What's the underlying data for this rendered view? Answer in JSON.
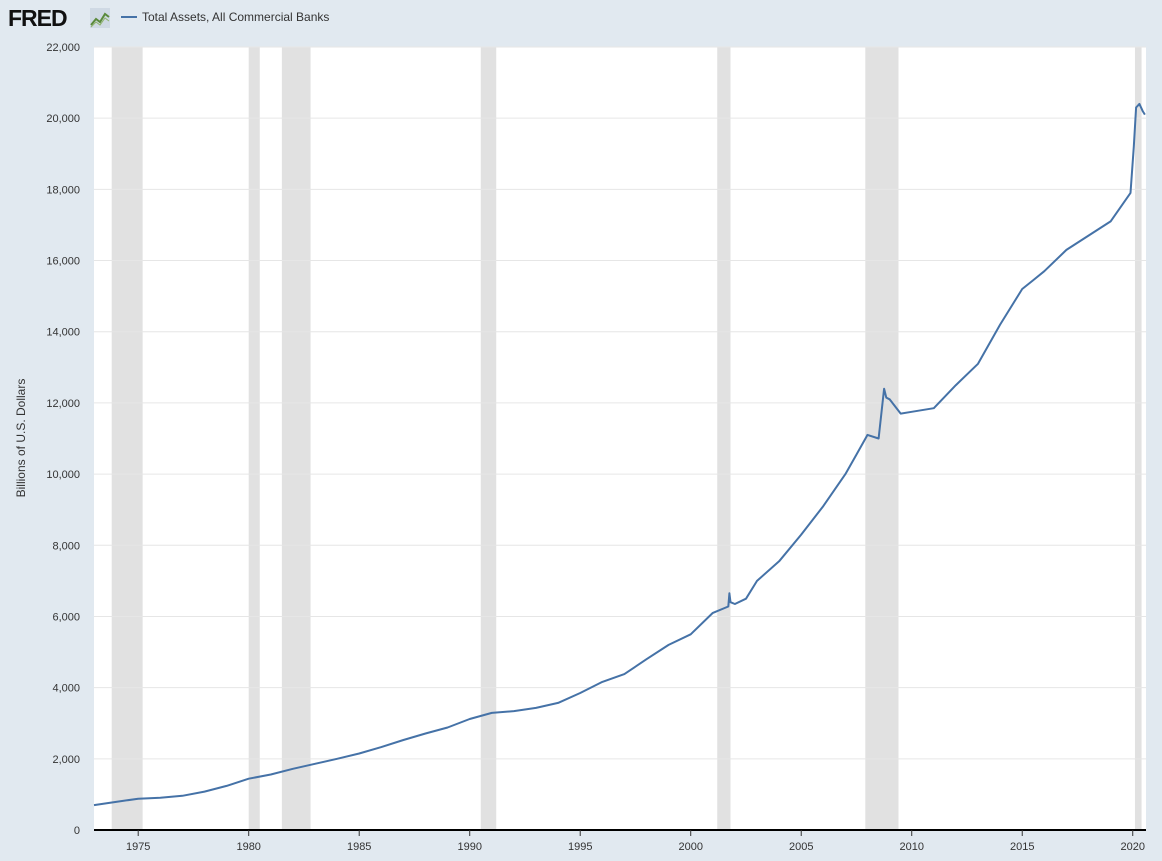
{
  "header": {
    "logo_text": "FRED",
    "logo_icon": "fred-chart-icon"
  },
  "chart_data": {
    "type": "line",
    "title": "",
    "xlabel": "",
    "ylabel": "Billions of U.S. Dollars",
    "xlim": [
      1973.0,
      2020.6
    ],
    "ylim": [
      0,
      22000
    ],
    "grid": true,
    "legend_position": "top-left",
    "colors": {
      "line": "#4572a7",
      "recession": "#e1e1e1",
      "background": "#e1e9f0",
      "plot": "#ffffff"
    },
    "y_ticks": [
      {
        "value": 0,
        "label": "0"
      },
      {
        "value": 2000,
        "label": "2,000"
      },
      {
        "value": 4000,
        "label": "4,000"
      },
      {
        "value": 6000,
        "label": "6,000"
      },
      {
        "value": 8000,
        "label": "8,000"
      },
      {
        "value": 10000,
        "label": "10,000"
      },
      {
        "value": 12000,
        "label": "12,000"
      },
      {
        "value": 14000,
        "label": "14,000"
      },
      {
        "value": 16000,
        "label": "16,000"
      },
      {
        "value": 18000,
        "label": "18,000"
      },
      {
        "value": 20000,
        "label": "20,000"
      },
      {
        "value": 22000,
        "label": "22,000"
      }
    ],
    "x_ticks": [
      {
        "value": 1975,
        "label": "1975"
      },
      {
        "value": 1980,
        "label": "1980"
      },
      {
        "value": 1985,
        "label": "1985"
      },
      {
        "value": 1990,
        "label": "1990"
      },
      {
        "value": 1995,
        "label": "1995"
      },
      {
        "value": 2000,
        "label": "2000"
      },
      {
        "value": 2005,
        "label": "2005"
      },
      {
        "value": 2010,
        "label": "2010"
      },
      {
        "value": 2015,
        "label": "2015"
      },
      {
        "value": 2020,
        "label": "2020"
      }
    ],
    "recessions": [
      [
        1973.8,
        1975.2
      ],
      [
        1980.0,
        1980.5
      ],
      [
        1981.5,
        1982.8
      ],
      [
        1990.5,
        1991.2
      ],
      [
        2001.2,
        2001.8
      ],
      [
        2007.9,
        2009.4
      ],
      [
        2020.1,
        2020.4
      ]
    ],
    "series": [
      {
        "name": "Total Assets, All Commercial Banks",
        "x": [
          1973.0,
          1974.0,
          1975.0,
          1976.0,
          1977.0,
          1978.0,
          1979.0,
          1980.0,
          1981.0,
          1982.0,
          1983.0,
          1984.0,
          1985.0,
          1986.0,
          1987.0,
          1988.0,
          1989.0,
          1990.0,
          1991.0,
          1992.0,
          1993.0,
          1994.0,
          1995.0,
          1996.0,
          1997.0,
          1998.0,
          1999.0,
          2000.0,
          2001.0,
          2001.7,
          2001.75,
          2001.8,
          2002.0,
          2002.5,
          2003.0,
          2004.0,
          2005.0,
          2006.0,
          2007.0,
          2007.5,
          2008.0,
          2008.5,
          2008.75,
          2008.85,
          2009.0,
          2009.5,
          2010.0,
          2011.0,
          2012.0,
          2013.0,
          2014.0,
          2015.0,
          2015.5,
          2016.0,
          2017.0,
          2018.0,
          2019.0,
          2019.9,
          2020.05,
          2020.15,
          2020.3,
          2020.45,
          2020.55
        ],
        "values": [
          700,
          790,
          880,
          905,
          960,
          1080,
          1240,
          1440,
          1560,
          1720,
          1860,
          2000,
          2150,
          2330,
          2530,
          2710,
          2880,
          3120,
          3290,
          3340,
          3430,
          3570,
          3850,
          4160,
          4380,
          4800,
          5200,
          5500,
          6100,
          6280,
          6650,
          6400,
          6350,
          6500,
          7000,
          7550,
          8300,
          9100,
          10000,
          10550,
          11100,
          11000,
          12400,
          12150,
          12100,
          11700,
          11750,
          11850,
          12500,
          13100,
          14200,
          15200,
          15450,
          15700,
          16300,
          16700,
          17100,
          17900,
          19200,
          20300,
          20400,
          20200,
          20100
        ]
      }
    ]
  }
}
